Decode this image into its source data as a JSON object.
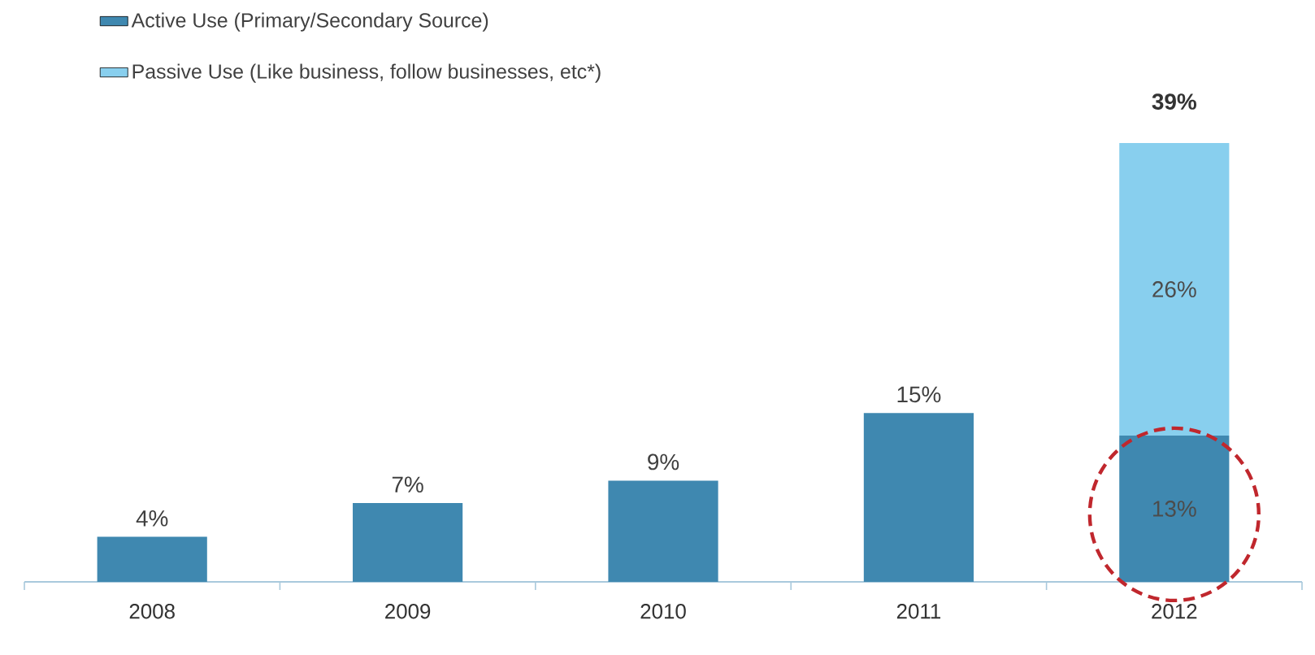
{
  "chart_data": {
    "type": "bar",
    "stacked": true,
    "legend": "top left",
    "categories": [
      "2008",
      "2009",
      "2010",
      "2011",
      "2012"
    ],
    "series": [
      {
        "name": "Active Use (Primary/Secondary Source)",
        "color": "#3f88b0",
        "values": [
          4,
          7,
          9,
          15,
          13
        ],
        "value_labels": [
          "4%",
          "7%",
          "9%",
          "15%",
          "13%"
        ]
      },
      {
        "name": "Passive Use (Like business, follow businesses, etc*)",
        "color": "#88cfee",
        "values": [
          null,
          null,
          null,
          null,
          26
        ],
        "value_labels": [
          null,
          null,
          null,
          null,
          "26%"
        ]
      }
    ],
    "totals": [
      null,
      null,
      null,
      null,
      "39%"
    ]
  }
}
